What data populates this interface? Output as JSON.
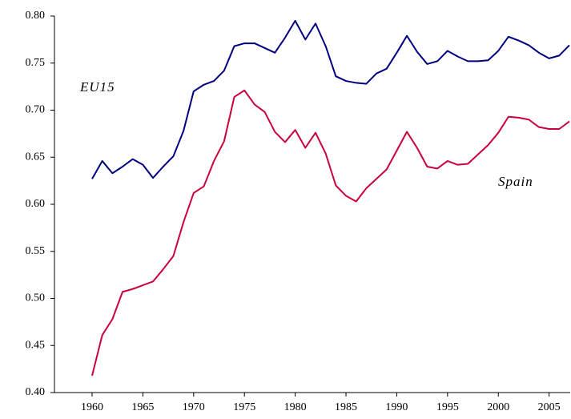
{
  "chart_data": {
    "type": "line",
    "categories": [
      "1960",
      null,
      null,
      null,
      null,
      "1965",
      null,
      null,
      null,
      null,
      "1970",
      null,
      null,
      null,
      null,
      "1975",
      null,
      null,
      null,
      null,
      "1980",
      null,
      null,
      null,
      null,
      "1985",
      null,
      null,
      null,
      null,
      "1990",
      null,
      null,
      null,
      null,
      "1995",
      null,
      null,
      null,
      null,
      "2000",
      null,
      null,
      null,
      null,
      "2005",
      null,
      null
    ],
    "series": [
      {
        "name": "EU15",
        "color": "#000080",
        "values": [
          0.627,
          0.646,
          0.633,
          0.64,
          0.648,
          0.642,
          0.628,
          0.64,
          0.651,
          0.678,
          0.72,
          0.727,
          0.731,
          0.742,
          0.768,
          0.771,
          0.771,
          0.766,
          0.761,
          0.777,
          0.795,
          0.775,
          0.792,
          0.768,
          0.736,
          0.731,
          0.729,
          0.728,
          0.739,
          0.744,
          0.761,
          0.779,
          0.762,
          0.749,
          0.752,
          0.763,
          0.757,
          0.752,
          0.752,
          0.753,
          0.763,
          0.778,
          0.774,
          0.769,
          0.761,
          0.755,
          0.758,
          0.769
        ]
      },
      {
        "name": "Spain",
        "color": "#c8003c",
        "values": [
          0.418,
          0.461,
          0.478,
          0.507,
          0.51,
          0.514,
          0.518,
          0.531,
          0.545,
          0.581,
          0.612,
          0.619,
          0.646,
          0.667,
          0.714,
          0.721,
          0.706,
          0.698,
          0.677,
          0.666,
          0.679,
          0.66,
          0.676,
          0.654,
          0.62,
          0.609,
          0.603,
          0.617,
          0.627,
          0.637,
          0.657,
          0.677,
          0.66,
          0.64,
          0.638,
          0.646,
          0.642,
          0.643,
          0.653,
          0.663,
          0.676,
          0.693,
          0.692,
          0.69,
          0.682,
          0.68,
          0.68,
          0.688
        ]
      }
    ],
    "ylim": [
      0.4,
      0.8
    ],
    "yticks": [
      {
        "value": 0.4,
        "label": "0.40"
      },
      {
        "value": 0.45,
        "label": "0.45"
      },
      {
        "value": 0.5,
        "label": "0.50"
      },
      {
        "value": 0.55,
        "label": "0.55"
      },
      {
        "value": 0.6,
        "label": "0.60"
      },
      {
        "value": 0.65,
        "label": "0.65"
      },
      {
        "value": 0.7,
        "label": "0.70"
      },
      {
        "value": 0.75,
        "label": "0.75"
      },
      {
        "value": 0.8,
        "label": "0.80"
      }
    ],
    "grid": false
  }
}
